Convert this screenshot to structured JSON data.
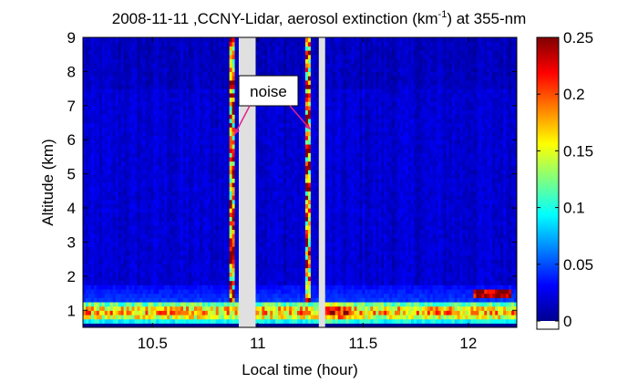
{
  "chart_data": {
    "type": "heatmap",
    "title": {
      "prefix": "2008-11-11 ,CCNY-Lidar, aerosol extinction (km",
      "superscript": "-1",
      "suffix": ") at 355-nm"
    },
    "xlabel": "Local time (hour)",
    "ylabel": "Altitude (km)",
    "xlim": [
      10.17,
      12.23
    ],
    "ylim": [
      0.5,
      9
    ],
    "x_ticks": [
      10.5,
      11,
      11.5,
      12
    ],
    "x_tick_labels": [
      "10.5",
      "11",
      "11.5",
      "12"
    ],
    "y_ticks": [
      1,
      2,
      3,
      4,
      5,
      6,
      7,
      8,
      9
    ],
    "y_tick_labels": [
      "1",
      "2",
      "3",
      "4",
      "5",
      "6",
      "7",
      "8",
      "9"
    ],
    "colorbar": {
      "range": [
        0,
        0.25
      ],
      "ticks": [
        0,
        0.05,
        0.1,
        0.15,
        0.2,
        0.25
      ],
      "tick_labels": [
        "0",
        "0.05",
        "0.1",
        "0.15",
        "0.2",
        "0.25"
      ],
      "colormap": "jet"
    },
    "data_gaps": [
      [
        10.91,
        10.99
      ],
      [
        11.29,
        11.32
      ]
    ],
    "noise_columns": [
      10.88,
      11.24
    ],
    "boundary_layer": {
      "top_km": 1.3,
      "peak_extinction": 0.22,
      "late_elevated_layer": {
        "x_range": [
          12.03,
          12.21
        ],
        "altitude_km": 1.45,
        "extinction": 0.25
      }
    },
    "background_extinction": 0.02,
    "annotation": {
      "text": "noise",
      "arrow_targets": [
        [
          10.89,
          6.15
        ],
        [
          11.25,
          6.3
        ]
      ]
    }
  }
}
